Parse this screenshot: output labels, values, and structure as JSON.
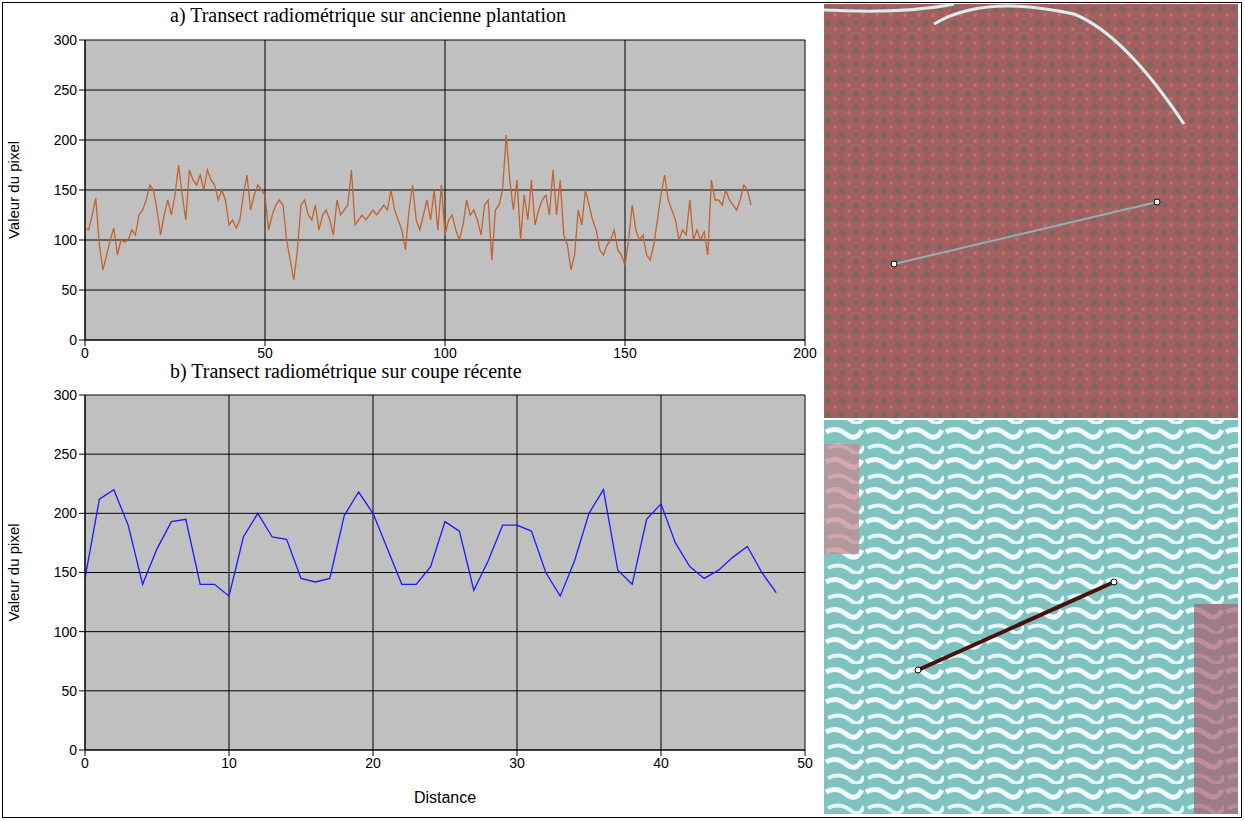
{
  "chart_data": [
    {
      "type": "line",
      "title": "a) Transect radiométrique sur ancienne plantation",
      "ylabel": "Valeur du pixel",
      "color": "#c4622d",
      "grid": true,
      "xlim": [
        0,
        200
      ],
      "xticks": [
        0,
        50,
        100,
        150,
        200
      ],
      "ylim": [
        0,
        300
      ],
      "yticks": [
        0,
        50,
        100,
        150,
        200,
        250,
        300
      ],
      "x": [
        0,
        1,
        2,
        3,
        4,
        5,
        6,
        7,
        8,
        9,
        10,
        11,
        12,
        13,
        14,
        15,
        16,
        17,
        18,
        19,
        20,
        21,
        22,
        23,
        24,
        25,
        26,
        27,
        28,
        29,
        30,
        31,
        32,
        33,
        34,
        35,
        36,
        37,
        38,
        39,
        40,
        41,
        42,
        43,
        44,
        45,
        46,
        47,
        48,
        49,
        50,
        51,
        52,
        53,
        54,
        55,
        56,
        57,
        58,
        59,
        60,
        61,
        62,
        63,
        64,
        65,
        66,
        67,
        68,
        69,
        70,
        71,
        72,
        73,
        74,
        75,
        76,
        77,
        78,
        79,
        80,
        81,
        82,
        83,
        84,
        85,
        86,
        87,
        88,
        89,
        90,
        91,
        92,
        93,
        94,
        95,
        96,
        97,
        98,
        99,
        100,
        101,
        102,
        103,
        104,
        105,
        106,
        107,
        108,
        109,
        110,
        111,
        112,
        113,
        114,
        115,
        116,
        117,
        118,
        119,
        120,
        121,
        122,
        123,
        124,
        125,
        126,
        127,
        128,
        129,
        130,
        131,
        132,
        133,
        134,
        135,
        136,
        137,
        138,
        139,
        140,
        141,
        142,
        143,
        144,
        145,
        146,
        147,
        148,
        149,
        150,
        151,
        152,
        153,
        154,
        155,
        156,
        157,
        158,
        159,
        160,
        161,
        162,
        163,
        164,
        165,
        166,
        167,
        168,
        169,
        170,
        171,
        172,
        173,
        174,
        175,
        176,
        177,
        178,
        179,
        180,
        181,
        182,
        183,
        184,
        185
      ],
      "values": [
        112,
        110,
        125,
        142,
        95,
        70,
        85,
        100,
        112,
        85,
        100,
        98,
        100,
        110,
        105,
        125,
        130,
        140,
        155,
        150,
        130,
        105,
        125,
        140,
        125,
        145,
        175,
        145,
        120,
        170,
        160,
        155,
        165,
        150,
        170,
        160,
        155,
        140,
        150,
        140,
        115,
        120,
        112,
        120,
        145,
        165,
        130,
        145,
        155,
        150,
        145,
        110,
        125,
        135,
        140,
        135,
        100,
        80,
        60,
        90,
        135,
        140,
        125,
        120,
        135,
        110,
        125,
        130,
        120,
        105,
        140,
        125,
        130,
        135,
        170,
        115,
        120,
        125,
        120,
        125,
        130,
        125,
        130,
        135,
        130,
        150,
        130,
        120,
        110,
        90,
        130,
        155,
        120,
        110,
        125,
        140,
        120,
        150,
        110,
        155,
        105,
        120,
        125,
        110,
        100,
        115,
        140,
        125,
        130,
        120,
        105,
        135,
        140,
        80,
        130,
        135,
        150,
        205,
        160,
        130,
        160,
        100,
        145,
        120,
        160,
        115,
        130,
        140,
        145,
        125,
        170,
        125,
        160,
        105,
        95,
        70,
        85,
        130,
        115,
        150,
        135,
        120,
        110,
        90,
        85,
        95,
        100,
        110,
        90,
        85,
        75,
        100,
        135,
        110,
        100,
        105,
        85,
        80,
        95,
        120,
        145,
        165,
        140,
        130,
        120,
        100,
        110,
        105,
        140,
        100,
        110,
        100,
        108,
        85,
        160,
        140,
        140,
        135,
        150,
        140,
        135,
        130,
        140,
        155,
        150,
        135
      ]
    },
    {
      "type": "line",
      "title": "b) Transect radiométrique sur coupe récente",
      "ylabel": "Valeur du pixel",
      "xlabel": "Distance",
      "color": "#1a1aff",
      "grid": true,
      "xlim": [
        0,
        50
      ],
      "xticks": [
        0,
        10,
        20,
        30,
        40,
        50
      ],
      "ylim": [
        0,
        300
      ],
      "yticks": [
        0,
        50,
        100,
        150,
        200,
        250,
        300
      ],
      "x": [
        0,
        1,
        2,
        3,
        4,
        5,
        6,
        7,
        8,
        9,
        10,
        11,
        12,
        13,
        14,
        15,
        16,
        17,
        18,
        19,
        20,
        21,
        22,
        23,
        24,
        25,
        26,
        27,
        28,
        29,
        30,
        31,
        32,
        33,
        34,
        35,
        36,
        37,
        38,
        39,
        40,
        41,
        42,
        43,
        44,
        45,
        46,
        47,
        48
      ],
      "values": [
        145,
        212,
        220,
        190,
        140,
        170,
        193,
        195,
        140,
        140,
        130,
        180,
        200,
        180,
        178,
        145,
        142,
        145,
        198,
        218,
        200,
        170,
        140,
        140,
        155,
        193,
        185,
        135,
        160,
        190,
        190,
        185,
        150,
        130,
        160,
        200,
        220,
        152,
        140,
        195,
        208,
        175,
        155,
        145,
        152,
        163,
        172,
        150,
        133
      ]
    }
  ]
}
